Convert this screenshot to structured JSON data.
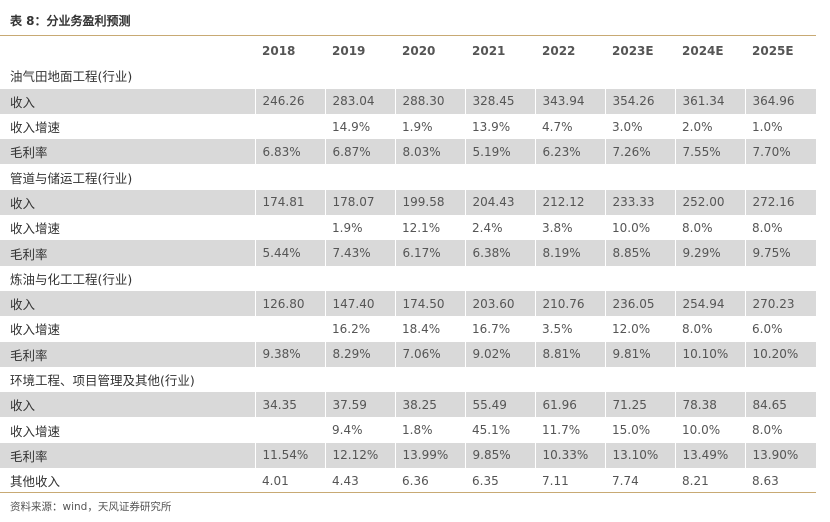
{
  "table_title": "表 8：分业务盈利预测",
  "columns": [
    "",
    "2018",
    "2019",
    "2020",
    "2021",
    "2022",
    "2023E",
    "2024E",
    "2025E"
  ],
  "rows": [
    {
      "kind": "section",
      "cells": [
        "油气田地面工程(行业)",
        "",
        "",
        "",
        "",
        "",
        "",
        "",
        ""
      ]
    },
    {
      "kind": "shade",
      "cells": [
        "收入",
        "246.26",
        "283.04",
        "288.30",
        "328.45",
        "343.94",
        "354.26",
        "361.34",
        "364.96"
      ]
    },
    {
      "kind": "plain",
      "cells": [
        "收入增速",
        "",
        "14.9%",
        "1.9%",
        "13.9%",
        "4.7%",
        "3.0%",
        "2.0%",
        "1.0%"
      ]
    },
    {
      "kind": "shade",
      "cells": [
        "毛利率",
        "6.83%",
        "6.87%",
        "8.03%",
        "5.19%",
        "6.23%",
        "7.26%",
        "7.55%",
        "7.70%"
      ]
    },
    {
      "kind": "section",
      "cells": [
        "管道与储运工程(行业)",
        "",
        "",
        "",
        "",
        "",
        "",
        "",
        ""
      ]
    },
    {
      "kind": "shade",
      "cells": [
        "收入",
        "174.81",
        "178.07",
        "199.58",
        "204.43",
        "212.12",
        "233.33",
        "252.00",
        "272.16"
      ]
    },
    {
      "kind": "plain",
      "cells": [
        "收入增速",
        "",
        "1.9%",
        "12.1%",
        "2.4%",
        "3.8%",
        "10.0%",
        "8.0%",
        "8.0%"
      ]
    },
    {
      "kind": "shade",
      "cells": [
        "毛利率",
        "5.44%",
        "7.43%",
        "6.17%",
        "6.38%",
        "8.19%",
        "8.85%",
        "9.29%",
        "9.75%"
      ]
    },
    {
      "kind": "section",
      "cells": [
        "炼油与化工工程(行业)",
        "",
        "",
        "",
        "",
        "",
        "",
        "",
        ""
      ]
    },
    {
      "kind": "shade",
      "cells": [
        "收入",
        "126.80",
        "147.40",
        "174.50",
        "203.60",
        "210.76",
        "236.05",
        "254.94",
        "270.23"
      ]
    },
    {
      "kind": "plain",
      "cells": [
        "收入增速",
        "",
        "16.2%",
        "18.4%",
        "16.7%",
        "3.5%",
        "12.0%",
        "8.0%",
        "6.0%"
      ]
    },
    {
      "kind": "shade",
      "cells": [
        "毛利率",
        "9.38%",
        "8.29%",
        "7.06%",
        "9.02%",
        "8.81%",
        "9.81%",
        "10.10%",
        "10.20%"
      ]
    },
    {
      "kind": "section",
      "cells": [
        "环境工程、项目管理及其他(行业)",
        "",
        "",
        "",
        "",
        "",
        "",
        "",
        ""
      ]
    },
    {
      "kind": "shade",
      "cells": [
        "收入",
        "34.35",
        "37.59",
        "38.25",
        "55.49",
        "61.96",
        "71.25",
        "78.38",
        "84.65"
      ]
    },
    {
      "kind": "plain",
      "cells": [
        "收入增速",
        "",
        "9.4%",
        "1.8%",
        "45.1%",
        "11.7%",
        "15.0%",
        "10.0%",
        "8.0%"
      ]
    },
    {
      "kind": "shade",
      "cells": [
        "毛利率",
        "11.54%",
        "12.12%",
        "13.99%",
        "9.85%",
        "10.33%",
        "13.10%",
        "13.49%",
        "13.90%"
      ]
    },
    {
      "kind": "plain",
      "cells": [
        "其他收入",
        "4.01",
        "4.43",
        "6.36",
        "6.35",
        "7.11",
        "7.74",
        "8.21",
        "8.63"
      ]
    }
  ],
  "source_note": "资料来源：wind，天风证券研究所",
  "colors": {
    "rule": "#c8aa74",
    "shade": "#d9d9d9"
  }
}
